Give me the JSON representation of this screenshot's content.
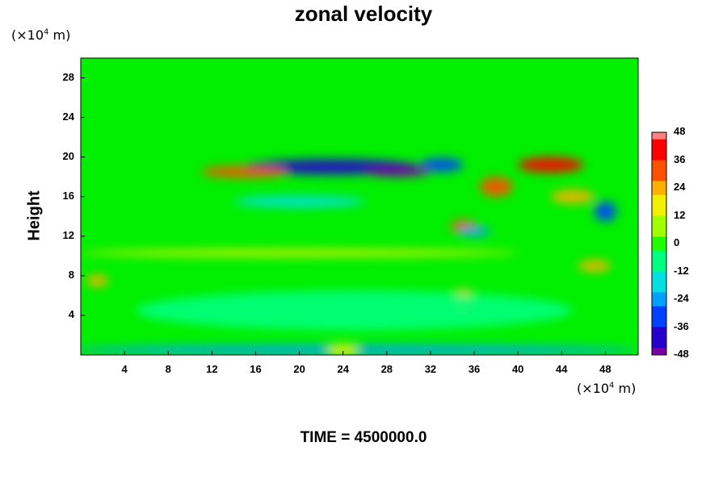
{
  "chart_data": {
    "type": "heatmap",
    "title": "zonal velocity",
    "ylabel": "Height",
    "xlabel": "",
    "y_unit_prefix": "(×10",
    "y_unit_exp": "4",
    "y_unit_suffix": " m)",
    "x_unit_prefix": "(×10",
    "x_unit_exp": "4",
    "x_unit_suffix": " m)",
    "xlim": [
      0,
      51
    ],
    "ylim": [
      0,
      30
    ],
    "x_ticks": [
      "4",
      "8",
      "12",
      "16",
      "20",
      "24",
      "28",
      "32",
      "36",
      "40",
      "44",
      "48"
    ],
    "y_ticks": [
      "4",
      "8",
      "12",
      "16",
      "20",
      "24",
      "28"
    ],
    "colorbar": {
      "min": -48,
      "max": 48,
      "labels": [
        "48",
        "36",
        "24",
        "12",
        "0",
        "-12",
        "-24",
        "-36",
        "-48"
      ],
      "colors_low_to_high": [
        "#7a00a0",
        "#2600cc",
        "#0040ff",
        "#00a0ff",
        "#00e0e0",
        "#00ff80",
        "#20ff00",
        "#a0ff00",
        "#f0f000",
        "#ffb000",
        "#ff5000",
        "#ff0000",
        "#ff8080"
      ]
    },
    "features": [
      {
        "x": 23,
        "y": 19.0,
        "rx": 8,
        "ry": 0.8,
        "value": -40
      },
      {
        "x": 29,
        "y": 18.5,
        "rx": 3,
        "ry": 0.5,
        "value": -48
      },
      {
        "x": 33,
        "y": 19.2,
        "rx": 2,
        "ry": 0.7,
        "value": -34
      },
      {
        "x": 15,
        "y": 18.5,
        "rx": 4,
        "ry": 0.6,
        "value": 32
      },
      {
        "x": 43,
        "y": 19.2,
        "rx": 3,
        "ry": 0.8,
        "value": 38
      },
      {
        "x": 38,
        "y": 17.0,
        "rx": 1.5,
        "ry": 1.0,
        "value": 30
      },
      {
        "x": 45,
        "y": 16.0,
        "rx": 2,
        "ry": 0.7,
        "value": 22
      },
      {
        "x": 35,
        "y": 13.0,
        "rx": 1.2,
        "ry": 0.6,
        "value": 28
      },
      {
        "x": 35,
        "y": 5.5,
        "rx": 1,
        "ry": 1.2,
        "value": 26
      },
      {
        "x": 1.5,
        "y": 7.5,
        "rx": 1,
        "ry": 0.6,
        "value": 20
      },
      {
        "x": 47,
        "y": 9.0,
        "rx": 1.5,
        "ry": 0.6,
        "value": 20
      },
      {
        "x": 20,
        "y": 15.5,
        "rx": 6,
        "ry": 0.6,
        "value": -16
      },
      {
        "x": 48,
        "y": 14.5,
        "rx": 1,
        "ry": 1.0,
        "value": -32
      },
      {
        "x": 36,
        "y": 12.5,
        "rx": 1.5,
        "ry": 0.5,
        "value": -28
      },
      {
        "x": 20,
        "y": 10.3,
        "rx": 20,
        "ry": 0.35,
        "value": 12
      },
      {
        "x": 25,
        "y": 4.5,
        "rx": 20,
        "ry": 2.0,
        "value": -12
      },
      {
        "x": 25,
        "y": 0.5,
        "rx": 26,
        "ry": 0.5,
        "value": -22
      },
      {
        "x": 24,
        "y": 0.5,
        "rx": 1.5,
        "ry": 0.6,
        "value": 16
      }
    ]
  },
  "footer": {
    "time_label": "TIME = 4500000.0"
  }
}
